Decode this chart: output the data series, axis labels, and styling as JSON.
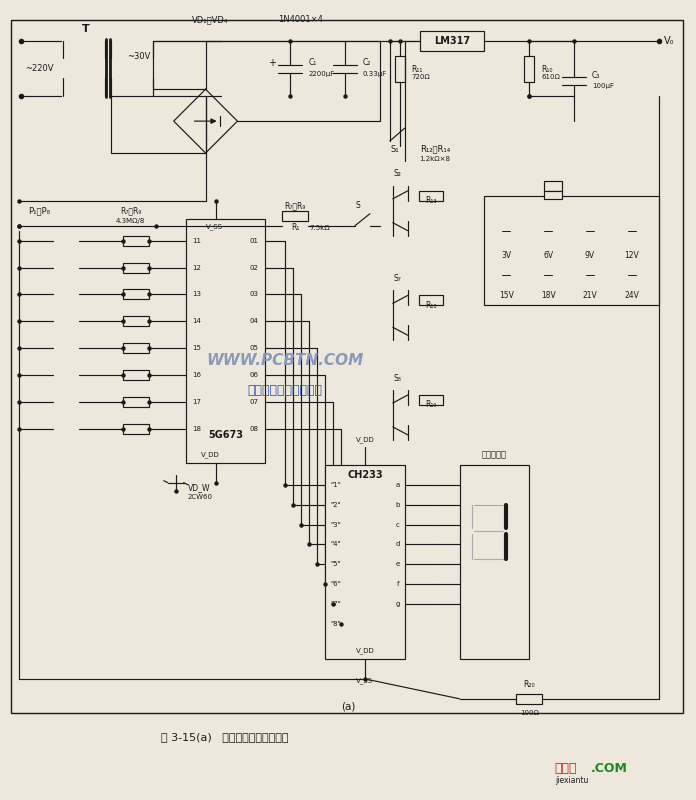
{
  "title": "图 3-15(a)   数控显示稳压电源电路",
  "bg_color": "#ede8db",
  "line_color": "#1a1a1a",
  "watermark_text": "WWW.PCBTN.COM",
  "watermark_color": "#8899bb",
  "company_text": "杭州将睿科技有限公司",
  "company_color": "#3355aa",
  "website_color1": "#cc2200",
  "website_color2": "#228822",
  "fig_width": 6.96,
  "fig_height": 8.0,
  "dpi": 100,
  "transformer_label": "T",
  "vd_label": "VD₁～VD₄",
  "diode_label": "1N4001×4",
  "c1_label": "C₁",
  "c1_val": "2200μF",
  "c2_label": "C₂",
  "c2_val": "0.33μF",
  "lm317_label": "LM317",
  "r10_label": "R₁₀",
  "r10_val": "610Ω",
  "c3_label": "C₃",
  "c3_val": "100μF",
  "r11_label": "R₁₁",
  "r11_val": "720Ω",
  "r12_label": "R₁₂～R₁₄",
  "r12_val": "1.2kΩ×8",
  "r1_label": "R₁",
  "s_label": "S",
  "r1_val": "7.5kΩ",
  "s1_label": "S₁",
  "s2_label": "S₂",
  "s3_label": "S₇",
  "s4_label": "S₈",
  "r13_label": "R₁₃",
  "r18_label": "R₁₈",
  "r19_label": "R₁₉",
  "ic_label": "5G673",
  "vss_label": "V_SS",
  "vdd_label": "V_DD",
  "vo_label": "V₀",
  "p_label": "P₁～P₈",
  "r79_label": "R₇～R₉",
  "r79_val": "4.3MΩ/8",
  "vdw_label": "VD_W",
  "vdw_val": "2CW60",
  "ch233_label": "CH233",
  "seg_label": "共阴数码管",
  "r20_label": "R₂₀",
  "r20_val": "100Ω",
  "v3": "3V",
  "v6": "6V",
  "v9": "9V",
  "v12": "12V",
  "v15": "15V",
  "v18": "18V",
  "v21": "21V",
  "v24": "24V",
  "caption_a": "(a)"
}
